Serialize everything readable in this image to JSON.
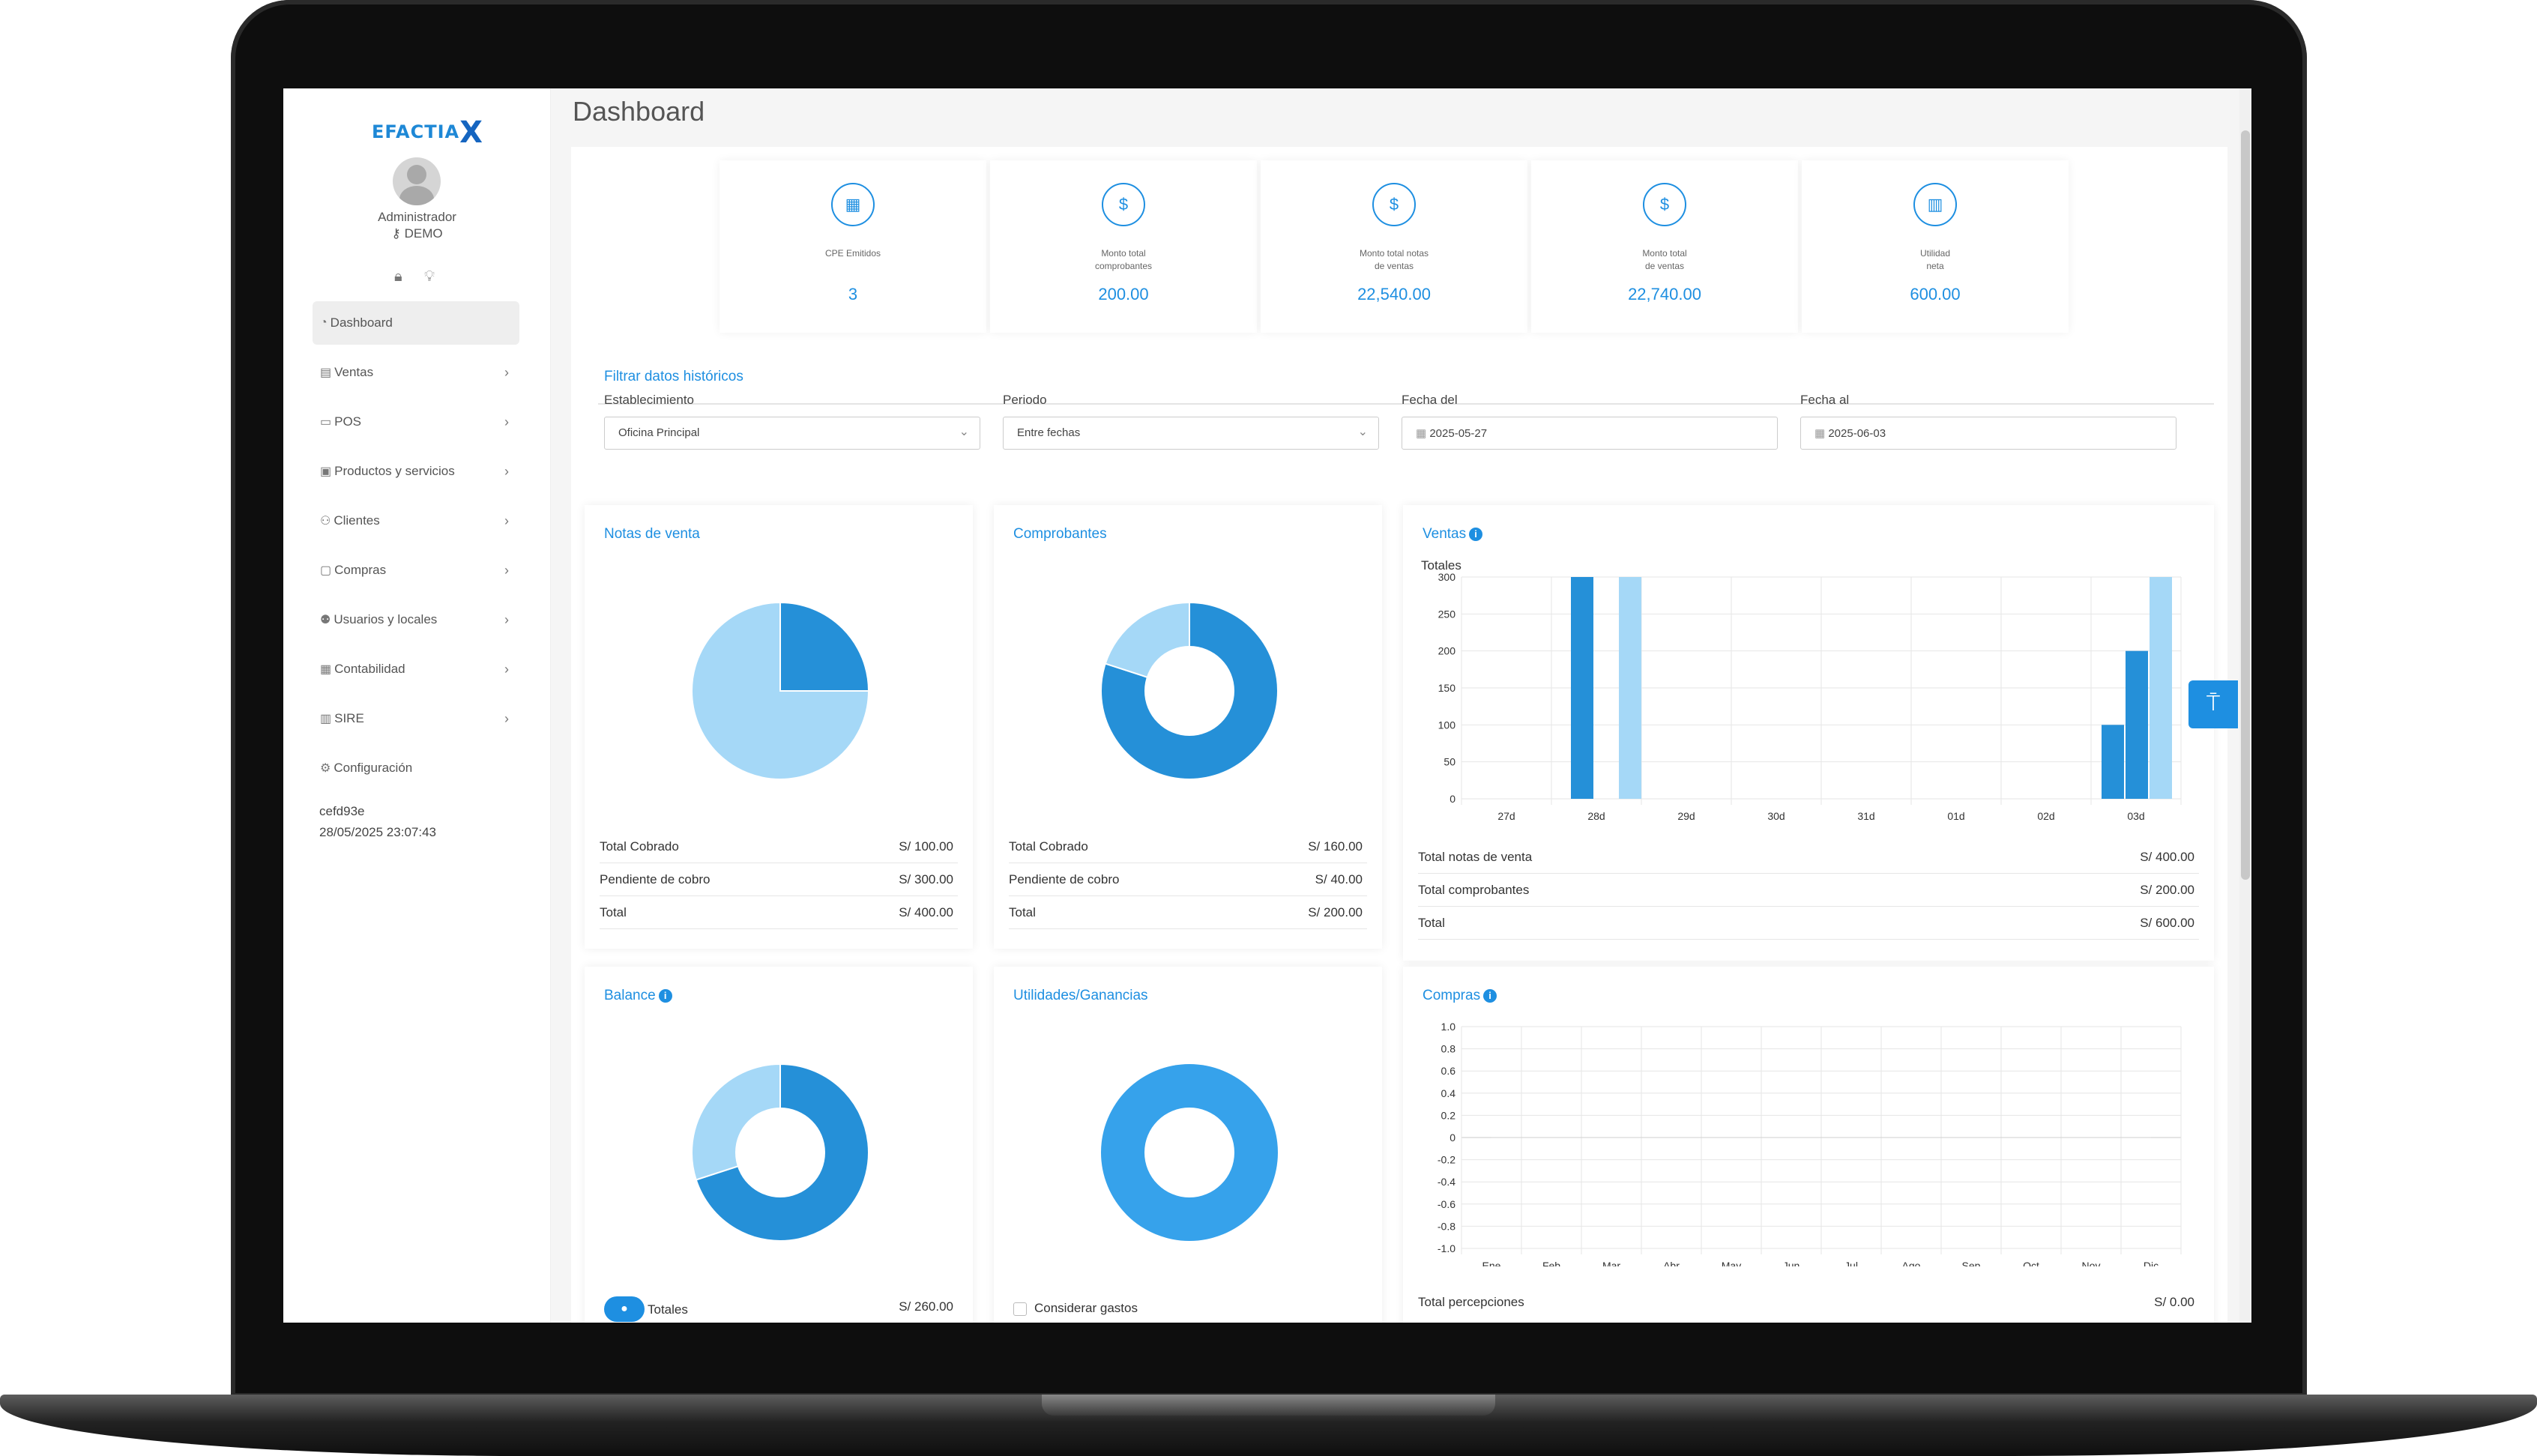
{
  "app": {
    "logo": "EFACTIA",
    "logo_mark": "X",
    "page_title": "Dashboard"
  },
  "user": {
    "name": "Administrador",
    "mode": "DEMO"
  },
  "sidebar": {
    "items": [
      {
        "label": "Dashboard",
        "icon": "dashboard-icon",
        "chevron": false
      },
      {
        "label": "Ventas",
        "icon": "receipt-icon",
        "chevron": true
      },
      {
        "label": "POS",
        "icon": "monitor-icon",
        "chevron": true
      },
      {
        "label": "Productos y servicios",
        "icon": "box-icon",
        "chevron": true
      },
      {
        "label": "Clientes",
        "icon": "users-icon",
        "chevron": true
      },
      {
        "label": "Compras",
        "icon": "cart-icon",
        "chevron": true
      },
      {
        "label": "Usuarios y locales",
        "icon": "user-group-icon",
        "chevron": true
      },
      {
        "label": "Contabilidad",
        "icon": "calculator-icon",
        "chevron": true
      },
      {
        "label": "SIRE",
        "icon": "sire-icon",
        "chevron": true
      },
      {
        "label": "Configuración",
        "icon": "gear-icon",
        "chevron": false
      }
    ],
    "version": "cefd93e",
    "timestamp": "28/05/2025 23:07:43"
  },
  "stats": [
    {
      "label": "CPE Emitidos",
      "value": "3",
      "icon": "calendar-icon"
    },
    {
      "label": "Monto total\ncomprobantes",
      "value": "200.00",
      "icon": "dollar-icon"
    },
    {
      "label": "Monto total notas\nde ventas",
      "value": "22,540.00",
      "icon": "dollar-icon"
    },
    {
      "label": "Monto total\nde ventas",
      "value": "22,740.00",
      "icon": "dollar-icon"
    },
    {
      "label": "Utilidad\nneta",
      "value": "600.00",
      "icon": "chart-icon"
    }
  ],
  "filters": {
    "title": "Filtrar datos históricos",
    "establecimiento_label": "Establecimiento",
    "establecimiento_value": "Oficina Principal",
    "periodo_label": "Periodo",
    "periodo_value": "Entre fechas",
    "fecha_del_label": "Fecha del",
    "fecha_del_value": "2025-05-27",
    "fecha_al_label": "Fecha al",
    "fecha_al_value": "2025-06-03"
  },
  "notas_venta": {
    "title": "Notas de venta",
    "rows": [
      {
        "label": "Total Cobrado",
        "value": "S/ 100.00"
      },
      {
        "label": "Pendiente de cobro",
        "value": "S/ 300.00"
      },
      {
        "label": "Total",
        "value": "S/ 400.00"
      }
    ]
  },
  "comprobantes": {
    "title": "Comprobantes",
    "rows": [
      {
        "label": "Total Cobrado",
        "value": "S/ 160.00"
      },
      {
        "label": "Pendiente de cobro",
        "value": "S/ 40.00"
      },
      {
        "label": "Total",
        "value": "S/ 200.00"
      }
    ]
  },
  "ventas": {
    "title": "Ventas",
    "rows": [
      {
        "label": "Total notas de venta",
        "value": "S/ 400.00"
      },
      {
        "label": "Total comprobantes",
        "value": "S/ 200.00"
      },
      {
        "label": "Total",
        "value": "S/ 600.00"
      }
    ]
  },
  "balance": {
    "title": "Balance",
    "footer_label": "Totales",
    "footer_value": "S/ 260.00"
  },
  "utilidades": {
    "title": "Utilidades/Ganancias",
    "footer_label": "Considerar gastos"
  },
  "compras": {
    "title": "Compras",
    "footer_label": "Total percepciones",
    "footer_value": "S/ 0.00"
  },
  "colors": {
    "accent": "#1e8fe1",
    "dark_blue": "#2590d8",
    "light_blue": "#a5d8f7",
    "mid_blue": "#36a2eb"
  },
  "chart_data": [
    {
      "type": "pie",
      "title": "Notas de venta",
      "labels": [
        "Total Cobrado",
        "Pendiente de cobro"
      ],
      "values": [
        100,
        300
      ]
    },
    {
      "type": "pie",
      "title": "Comprobantes",
      "donut": true,
      "labels": [
        "Total Cobrado",
        "Pendiente de cobro"
      ],
      "values": [
        160,
        40
      ]
    },
    {
      "type": "bar",
      "title": "Ventas",
      "ylabel": "Totales",
      "categories": [
        "27d",
        "28d",
        "29d",
        "30d",
        "31d",
        "01d",
        "02d",
        "03d"
      ],
      "ylim": [
        0,
        300
      ],
      "yticks": [
        0,
        50,
        100,
        150,
        200,
        250,
        300
      ],
      "series": [
        {
          "values": [
            0,
            300,
            0,
            0,
            0,
            0,
            0,
            100
          ],
          "color": "#2590d8"
        },
        {
          "values": [
            0,
            0,
            0,
            0,
            0,
            0,
            0,
            200
          ],
          "color": "#2590d8"
        },
        {
          "values": [
            0,
            300,
            0,
            0,
            0,
            0,
            0,
            300
          ],
          "color": "#a5d8f7"
        }
      ]
    },
    {
      "type": "pie",
      "title": "Balance",
      "donut": true,
      "values": [
        70,
        30
      ]
    },
    {
      "type": "pie",
      "title": "Utilidades/Ganancias",
      "donut": true,
      "values": [
        100
      ]
    },
    {
      "type": "line",
      "title": "Compras",
      "categories": [
        "Ene",
        "Feb",
        "Mar",
        "Abr",
        "May",
        "Jun",
        "Jul",
        "Ago",
        "Sep",
        "Oct",
        "Nov",
        "Dic"
      ],
      "ylim": [
        -1.0,
        1.0
      ],
      "yticks": [
        "1.0",
        "0.8",
        "0.6",
        "0.4",
        "0.2",
        "0",
        "-0.2",
        "-0.4",
        "-0.6",
        "-0.8",
        "-1.0"
      ],
      "values": [
        0,
        0,
        0,
        0,
        0,
        0,
        0,
        0,
        0,
        0,
        0,
        0
      ]
    }
  ]
}
